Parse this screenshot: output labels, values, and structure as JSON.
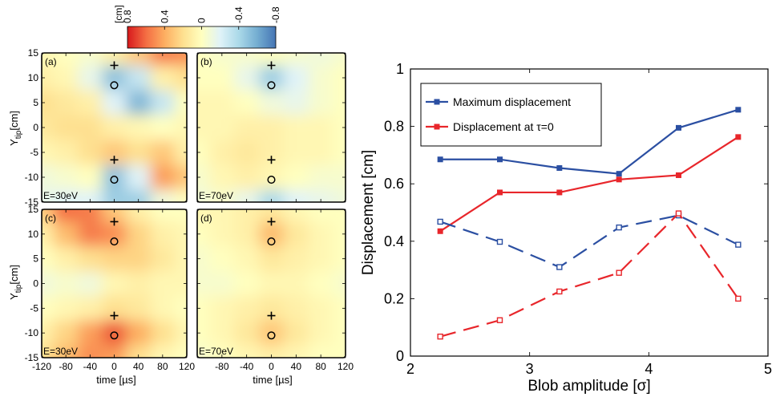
{
  "colorbar": {
    "unit": "[cm]",
    "ticks": [
      "0.8",
      "0.4",
      "0",
      "-0.4",
      "-0.8"
    ],
    "range": [
      0.8,
      -0.8
    ],
    "colors": [
      "#d7191c",
      "#f46d43",
      "#fdae61",
      "#fee090",
      "#ffffbf",
      "#e0f3f8",
      "#abd9e9",
      "#74add1",
      "#4575b4"
    ]
  },
  "panels": [
    {
      "tag": "(a)",
      "energy": "E=30eV"
    },
    {
      "tag": "(b)",
      "energy": "E=70eV"
    },
    {
      "tag": "(c)",
      "energy": "E=30eV"
    },
    {
      "tag": "(d)",
      "energy": "E=70eV"
    }
  ],
  "contour_axes": {
    "ylabel": "Y",
    "ylabel_sub": "tip",
    "ylabel_unit": "[cm]",
    "yticks": [
      "15",
      "10",
      "5",
      "0",
      "-5",
      "-10",
      "-15"
    ],
    "xticks_left": [
      "-120",
      "-80",
      "-40",
      "0",
      "40",
      "80",
      "120"
    ],
    "xticks_right": [
      "-80",
      "-40",
      "0",
      "40",
      "80",
      "120"
    ],
    "xlabel": "time [µs]"
  },
  "chart_data": [
    {
      "type": "heatmap",
      "panel": "(a)",
      "x": [
        -120,
        -80,
        -40,
        0,
        40,
        80,
        120
      ],
      "y": [
        15,
        10,
        5,
        0,
        -5,
        -10,
        -15
      ],
      "values": [
        [
          0.05,
          0.0,
          -0.05,
          0.1,
          0.3,
          0.55,
          0.5
        ],
        [
          0.1,
          0.05,
          -0.15,
          -0.5,
          -0.3,
          0.1,
          0.2
        ],
        [
          0.2,
          0.15,
          0.1,
          -0.2,
          -0.55,
          -0.3,
          0.0
        ],
        [
          0.15,
          0.2,
          0.2,
          0.1,
          0.05,
          0.0,
          0.05
        ],
        [
          0.05,
          0.1,
          0.2,
          0.3,
          0.2,
          0.3,
          0.1
        ],
        [
          -0.1,
          -0.05,
          0.0,
          -0.5,
          -0.2,
          0.45,
          0.3
        ],
        [
          -0.15,
          -0.2,
          -0.2,
          -0.45,
          -0.45,
          -0.1,
          0.0
        ]
      ],
      "markers": {
        "plus": [
          [
            0,
            12.5
          ],
          [
            0,
            -6.5
          ]
        ],
        "circle": [
          [
            0,
            8.5
          ],
          [
            0,
            -10.5
          ]
        ]
      }
    },
    {
      "type": "heatmap",
      "panel": "(b)",
      "x": [
        -120,
        -80,
        -40,
        0,
        40,
        80,
        120
      ],
      "y": [
        15,
        10,
        5,
        0,
        -5,
        -10,
        -15
      ],
      "values": [
        [
          0.0,
          -0.05,
          -0.05,
          0.0,
          -0.05,
          -0.1,
          -0.05
        ],
        [
          0.0,
          0.0,
          -0.15,
          -0.45,
          -0.2,
          -0.05,
          0.0
        ],
        [
          0.05,
          0.05,
          0.0,
          -0.1,
          -0.15,
          -0.05,
          0.0
        ],
        [
          0.05,
          0.05,
          0.1,
          0.1,
          0.05,
          0.05,
          0.0
        ],
        [
          0.0,
          0.1,
          0.15,
          0.1,
          0.05,
          0.05,
          0.0
        ],
        [
          -0.05,
          0.05,
          0.1,
          0.05,
          0.0,
          -0.05,
          -0.05
        ],
        [
          -0.1,
          -0.05,
          -0.15,
          -0.4,
          -0.2,
          -0.15,
          -0.1
        ]
      ],
      "markers": {
        "plus": [
          [
            0,
            12.5
          ],
          [
            0,
            -6.5
          ]
        ],
        "circle": [
          [
            0,
            8.5
          ],
          [
            0,
            -10.5
          ]
        ]
      }
    },
    {
      "type": "heatmap",
      "panel": "(c)",
      "x": [
        -120,
        -80,
        -40,
        0,
        40,
        80,
        120
      ],
      "y": [
        15,
        10,
        5,
        0,
        -5,
        -10,
        -15
      ],
      "values": [
        [
          0.3,
          0.6,
          0.55,
          0.3,
          0.1,
          0.0,
          0.0
        ],
        [
          0.1,
          0.35,
          0.55,
          0.5,
          0.25,
          0.1,
          0.05
        ],
        [
          0.0,
          0.1,
          0.2,
          0.25,
          0.25,
          0.15,
          0.05
        ],
        [
          -0.1,
          -0.05,
          -0.1,
          0.05,
          0.1,
          0.05,
          0.05
        ],
        [
          0.0,
          0.05,
          0.1,
          0.2,
          0.15,
          0.05,
          0.0
        ],
        [
          0.1,
          0.25,
          0.45,
          0.65,
          0.4,
          0.2,
          0.05
        ],
        [
          0.2,
          0.35,
          0.5,
          0.45,
          0.2,
          0.05,
          0.0
        ]
      ],
      "markers": {
        "plus": [
          [
            0,
            12.5
          ],
          [
            0,
            -6.5
          ]
        ],
        "circle": [
          [
            0,
            8.5
          ],
          [
            0,
            -10.5
          ]
        ]
      }
    },
    {
      "type": "heatmap",
      "panel": "(d)",
      "x": [
        -120,
        -80,
        -40,
        0,
        40,
        80,
        120
      ],
      "y": [
        15,
        10,
        5,
        0,
        -5,
        -10,
        -15
      ],
      "values": [
        [
          0.05,
          0.05,
          0.1,
          0.15,
          0.05,
          0.0,
          0.0
        ],
        [
          0.0,
          0.05,
          0.1,
          0.35,
          0.15,
          0.05,
          0.0
        ],
        [
          -0.05,
          0.0,
          0.05,
          0.15,
          0.1,
          0.05,
          0.0
        ],
        [
          -0.05,
          -0.05,
          0.0,
          0.05,
          0.05,
          0.0,
          -0.05
        ],
        [
          0.0,
          0.05,
          0.1,
          0.15,
          0.1,
          0.05,
          0.0
        ],
        [
          0.0,
          0.05,
          0.15,
          0.3,
          0.15,
          0.05,
          0.0
        ],
        [
          -0.05,
          0.0,
          0.05,
          0.1,
          0.05,
          0.0,
          0.0
        ]
      ],
      "markers": {
        "plus": [
          [
            0,
            12.5
          ],
          [
            0,
            -6.5
          ]
        ],
        "circle": [
          [
            0,
            8.5
          ],
          [
            0,
            -10.5
          ]
        ]
      }
    },
    {
      "type": "line",
      "xlabel": "Blob amplitude [σ]",
      "ylabel": "Displacement [cm]",
      "xlim": [
        2,
        5
      ],
      "ylim": [
        0,
        1
      ],
      "xticks": [
        2,
        3,
        4,
        5
      ],
      "yticks": [
        0,
        0.2,
        0.4,
        0.6,
        0.8,
        1
      ],
      "ytick_labels": [
        "0",
        "0.2",
        "0.4",
        "0.6",
        "0.8",
        "1"
      ],
      "legend_position": "top-left",
      "series": [
        {
          "name": "Maximum displacement",
          "color": "#2b4fa2",
          "style": "solid",
          "marker": "filled-square",
          "legend": true,
          "x": [
            2.25,
            2.75,
            3.25,
            3.75,
            4.25,
            4.75
          ],
          "y": [
            0.685,
            0.685,
            0.655,
            0.635,
            0.795,
            0.858
          ]
        },
        {
          "name": "Displacement at τ=0",
          "color": "#e8262b",
          "style": "solid",
          "marker": "filled-square",
          "legend": true,
          "x": [
            2.25,
            2.75,
            3.25,
            3.75,
            4.25,
            4.75
          ],
          "y": [
            0.435,
            0.57,
            0.57,
            0.615,
            0.63,
            0.763
          ]
        },
        {
          "color": "#2b4fa2",
          "style": "dashed",
          "marker": "open-square",
          "legend": false,
          "x": [
            2.25,
            2.75,
            3.25,
            3.75,
            4.25,
            4.75
          ],
          "y": [
            0.468,
            0.398,
            0.31,
            0.448,
            0.49,
            0.388
          ]
        },
        {
          "color": "#e8262b",
          "style": "dashed",
          "marker": "open-square",
          "legend": false,
          "x": [
            2.25,
            2.75,
            3.25,
            3.75,
            4.25,
            4.75
          ],
          "y": [
            0.068,
            0.125,
            0.225,
            0.29,
            0.497,
            0.2
          ]
        }
      ]
    }
  ]
}
